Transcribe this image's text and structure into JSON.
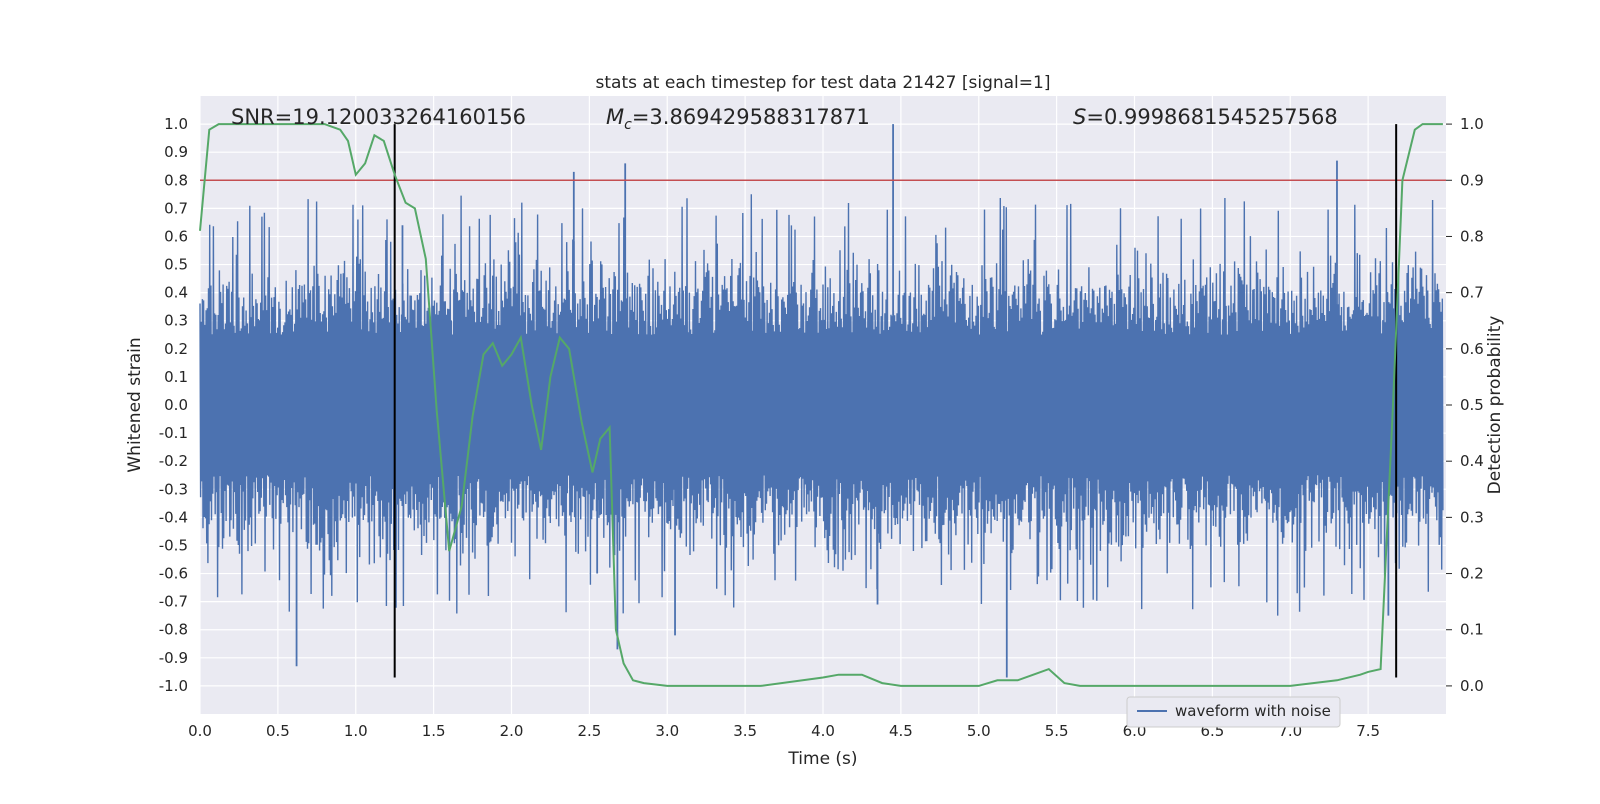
{
  "chart_data": {
    "type": "line",
    "title": "stats at each timestep for test data 21427 [signal=1]",
    "xlabel": "Time (s)",
    "ylabel": "Whitened strain",
    "ylabel_right": "Detection probability",
    "xlim": [
      0,
      8
    ],
    "ylim": [
      -1.1,
      1.1
    ],
    "ylim_right": [
      -0.05,
      1.05
    ],
    "xticks": [
      "0.0",
      "0.5",
      "1.0",
      "1.5",
      "2.0",
      "2.5",
      "3.0",
      "3.5",
      "4.0",
      "4.5",
      "5.0",
      "5.5",
      "6.0",
      "6.5",
      "7.0",
      "7.5"
    ],
    "xtick_values": [
      0,
      0.5,
      1,
      1.5,
      2,
      2.5,
      3,
      3.5,
      4,
      4.5,
      5,
      5.5,
      6,
      6.5,
      7,
      7.5
    ],
    "yticks": [
      "1.0",
      "0.9",
      "0.8",
      "0.7",
      "0.6",
      "0.5",
      "0.4",
      "0.3",
      "0.2",
      "0.1",
      "0.0",
      "-0.1",
      "-0.2",
      "-0.3",
      "-0.4",
      "-0.5",
      "-0.6",
      "-0.7",
      "-0.8",
      "-0.9",
      "-1.0"
    ],
    "ytick_values": [
      1.0,
      0.9,
      0.8,
      0.7,
      0.6,
      0.5,
      0.4,
      0.3,
      0.2,
      0.1,
      0.0,
      -0.1,
      -0.2,
      -0.3,
      -0.4,
      -0.5,
      -0.6,
      -0.7,
      -0.8,
      -0.9,
      -1.0
    ],
    "yticks_right": [
      "1.0",
      "0.9",
      "0.8",
      "0.7",
      "0.6",
      "0.5",
      "0.4",
      "0.3",
      "0.2",
      "0.1",
      "0.0"
    ],
    "ytick_right_values": [
      1.0,
      0.9,
      0.8,
      0.7,
      0.6,
      0.5,
      0.4,
      0.3,
      0.2,
      0.1,
      0.0
    ],
    "annotations": {
      "snr": "SNR=19.120033264160156",
      "mc_symbol": "M",
      "mc_sub": "c",
      "mc_value": "=3.869429588317871",
      "s_symbol": "S",
      "s_value": "=0.9998681545257568"
    },
    "threshold": {
      "value": 0.9,
      "axis": "right",
      "color": "#c44e52"
    },
    "vertical_markers": [
      1.25,
      7.68
    ],
    "marker_range": [
      -0.97,
      1.0
    ],
    "legend": {
      "label": "waveform with noise",
      "placement": "lower-right"
    },
    "series": [
      {
        "name": "waveform with noise",
        "axis": "left",
        "color": "#4c72b0",
        "sample_count": 2048,
        "band": [
          -0.22,
          0.25
        ],
        "notable_spikes": [
          {
            "x": 0.62,
            "y": -0.93
          },
          {
            "x": 1.3,
            "y": 0.64
          },
          {
            "x": 2.4,
            "y": 0.83
          },
          {
            "x": 2.55,
            "y": -0.6
          },
          {
            "x": 2.68,
            "y": -0.87
          },
          {
            "x": 2.73,
            "y": 0.86
          },
          {
            "x": 3.05,
            "y": -0.82
          },
          {
            "x": 4.35,
            "y": -0.71
          },
          {
            "x": 4.45,
            "y": 1.0
          },
          {
            "x": 5.18,
            "y": -0.97
          },
          {
            "x": 7.3,
            "y": 0.87
          },
          {
            "x": 7.63,
            "y": -0.75
          }
        ]
      },
      {
        "name": "detection probability",
        "axis": "right",
        "color": "#55a868",
        "x": [
          0,
          0.06,
          0.12,
          0.2,
          0.4,
          0.6,
          0.8,
          0.9,
          0.95,
          1.0,
          1.06,
          1.12,
          1.18,
          1.25,
          1.32,
          1.38,
          1.45,
          1.52,
          1.6,
          1.68,
          1.75,
          1.82,
          1.88,
          1.94,
          2.0,
          2.06,
          2.13,
          2.19,
          2.25,
          2.31,
          2.37,
          2.45,
          2.52,
          2.57,
          2.63,
          2.67,
          2.72,
          2.78,
          2.85,
          3.0,
          3.3,
          3.6,
          4.0,
          4.1,
          4.2,
          4.25,
          4.38,
          4.5,
          4.6,
          4.7,
          5.0,
          5.12,
          5.25,
          5.35,
          5.45,
          5.55,
          5.65,
          5.8,
          6.0,
          7.0,
          7.3,
          7.45,
          7.5,
          7.58,
          7.66,
          7.72,
          7.8,
          7.85,
          7.92,
          7.98
        ],
        "values": [
          0.81,
          0.99,
          1.0,
          1.0,
          1.0,
          1.0,
          1.0,
          0.99,
          0.97,
          0.91,
          0.93,
          0.98,
          0.97,
          0.91,
          0.86,
          0.85,
          0.76,
          0.49,
          0.24,
          0.32,
          0.48,
          0.59,
          0.61,
          0.57,
          0.59,
          0.62,
          0.5,
          0.42,
          0.55,
          0.62,
          0.6,
          0.47,
          0.38,
          0.44,
          0.46,
          0.1,
          0.04,
          0.01,
          0.005,
          0.0,
          0.0,
          0.0,
          0.015,
          0.02,
          0.02,
          0.02,
          0.005,
          0.0,
          0.0,
          0.0,
          0.0,
          0.01,
          0.01,
          0.02,
          0.03,
          0.005,
          0.0,
          0.0,
          0.0,
          0.0,
          0.01,
          0.02,
          0.025,
          0.03,
          0.5,
          0.9,
          0.99,
          1.0,
          1.0,
          1.0
        ]
      }
    ]
  }
}
